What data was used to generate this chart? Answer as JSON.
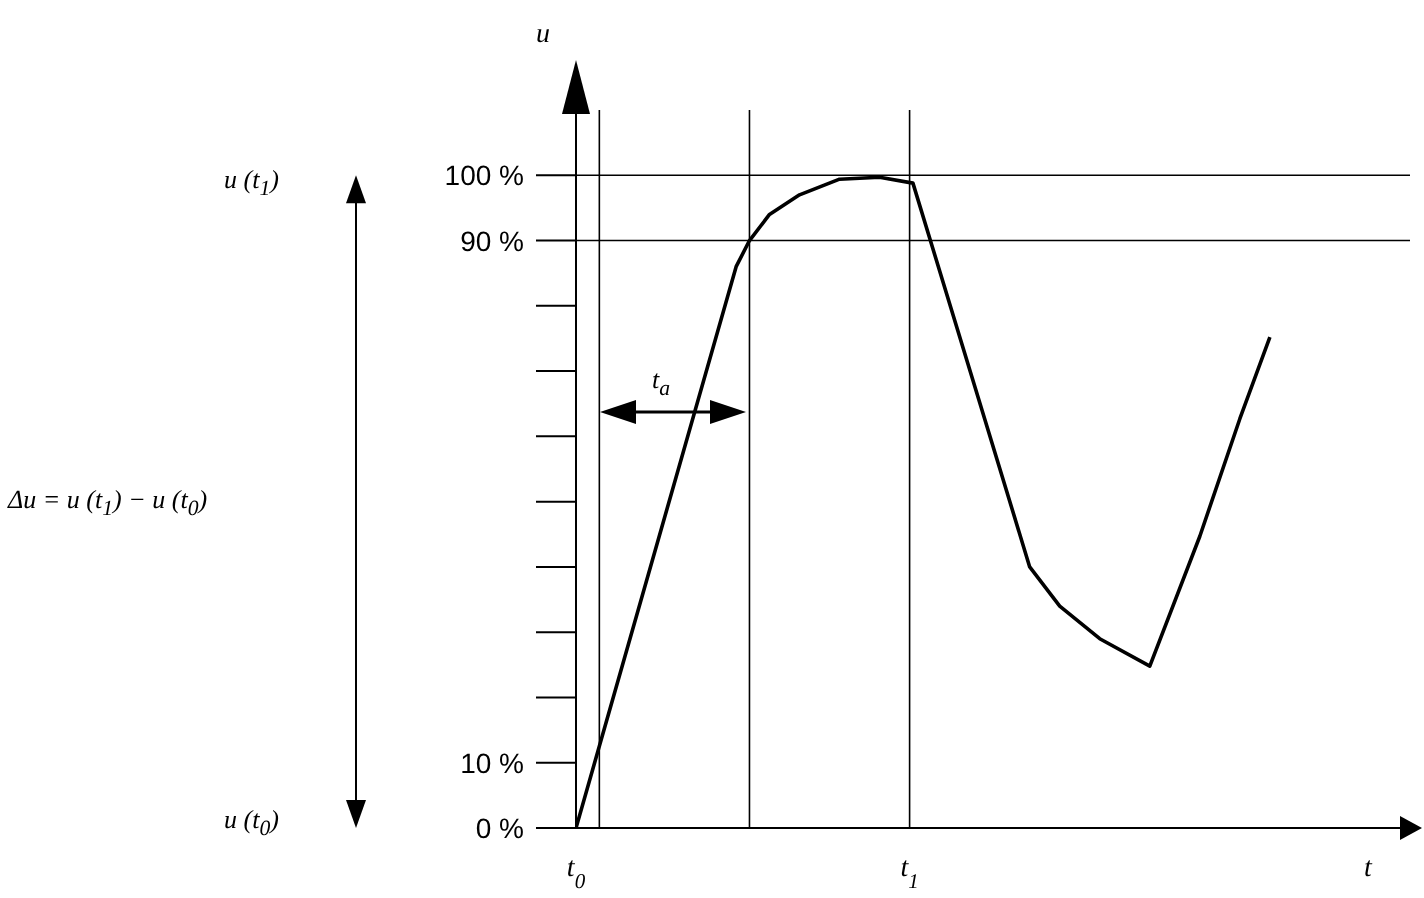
{
  "chart_data": {
    "type": "line",
    "xlabel": "t",
    "ylabel": "u",
    "x": [
      0,
      0.48,
      0.52,
      0.58,
      0.67,
      0.79,
      0.91,
      1.01,
      1.36,
      1.45,
      1.57,
      1.72,
      1.87,
      1.99,
      2.08
    ],
    "series": [
      {
        "color": "#000000",
        "values": [
          0,
          86,
          90,
          94,
          97,
          99.4,
          99.7,
          98.8,
          40,
          34,
          29,
          24.8,
          44.7,
          62.7,
          75.2
        ]
      }
    ],
    "xlim": [
      0,
      2.5
    ],
    "xticks": [
      {
        "value": 0,
        "label": "t$_{0}$"
      },
      {
        "value": 1,
        "label": "t$_{1}$"
      }
    ],
    "ylim": [
      0,
      110
    ],
    "yticks": [
      {
        "value": 0,
        "label": "0 %"
      },
      {
        "value": 10,
        "label": "10 %"
      },
      {
        "value": 90,
        "label": "90 %"
      },
      {
        "value": 100,
        "label": "100 %"
      }
    ],
    "ref_lines": [
      {
        "axis": "y",
        "value": 100
      },
      {
        "axis": "y",
        "value": 90
      },
      {
        "axis": "x",
        "value": 1
      },
      {
        "axis": "x",
        "value": 0.07
      },
      {
        "axis": "x",
        "value": 0.52
      }
    ],
    "annotations": [
      "u (t$_{1}$)",
      "u (t$_{0}$)",
      "Δu = u (t$_{1}$) − u (t$_{0}$)",
      "t$_{a}$"
    ],
    "grid": false,
    "legend": false
  }
}
